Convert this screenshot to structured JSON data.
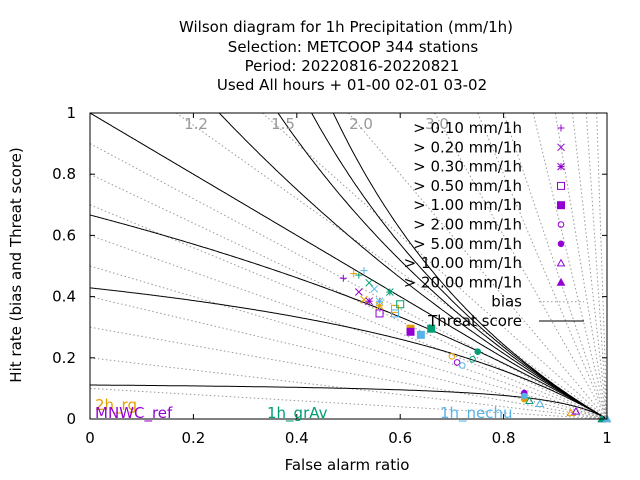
{
  "chart_data": {
    "type": "scatter",
    "title_lines": [
      "Wilson diagram  for 1h Precipitation (mm/1h)",
      "Selection: METCOOP    344 stations",
      "Period: 20220816-20220821",
      "Used  All hours + 01-00 02-01 03-02"
    ],
    "xlabel": "False alarm ratio",
    "ylabel": "Hit rate (bias and Threat score)",
    "xlim": [
      0,
      1
    ],
    "ylim": [
      0,
      1
    ],
    "xticks": [
      "0",
      "0.2",
      "0.4",
      "0.6",
      "0.8",
      "1"
    ],
    "yticks": [
      "0",
      "0.2",
      "0.4",
      "0.6",
      "0.8",
      "1"
    ],
    "bias_isolines": [
      {
        "label": "1.2",
        "value": 1.2
      },
      {
        "label": "1.5",
        "value": 1.5
      },
      {
        "label": "2.0",
        "value": 2.0
      },
      {
        "label": "3.0",
        "value": 3.0
      }
    ],
    "bias_values_unlabeled": [
      0.1,
      0.2,
      0.3,
      0.4,
      0.5,
      0.6,
      0.7,
      0.8,
      0.9,
      1.0,
      4.0,
      5.0,
      7.0,
      10.0,
      15.0,
      25.0,
      50.0
    ],
    "threat_score_isolines": [
      0.1,
      0.3,
      0.4,
      0.5,
      0.6,
      0.7,
      0.8,
      0.9
    ],
    "legend": {
      "placement": "top-right",
      "thresholds": [
        {
          "label": "> 0.10 mm/1h",
          "symbol": "plus"
        },
        {
          "label": "> 0.20 mm/1h",
          "symbol": "cross"
        },
        {
          "label": "> 0.30 mm/1h",
          "symbol": "star"
        },
        {
          "label": "> 0.50 mm/1h",
          "symbol": "square-open"
        },
        {
          "label": "> 1.00 mm/1h",
          "symbol": "square-filled"
        },
        {
          "label": "> 2.00 mm/1h",
          "symbol": "circle-open"
        },
        {
          "label": "> 5.00 mm/1h",
          "symbol": "circle-filled"
        },
        {
          "label": "> 10.00 mm/1h",
          "symbol": "triangle-open"
        },
        {
          "label": "> 20.00 mm/1h",
          "symbol": "triangle-filled"
        }
      ],
      "line_entries": [
        {
          "label": "bias",
          "style": "dotted"
        },
        {
          "label": "Threat score",
          "style": "solid"
        }
      ]
    },
    "series": [
      {
        "name": "2h_rg",
        "color": "#e69f00",
        "points": [
          [
            0.51,
            0.475
          ],
          [
            0.53,
            0.39
          ],
          [
            0.56,
            0.37
          ],
          [
            0.59,
            0.36
          ],
          [
            0.62,
            0.295
          ],
          [
            0.7,
            0.205
          ],
          [
            0.84,
            0.065
          ],
          [
            0.93,
            0.02
          ],
          [
            1.0,
            0.0
          ]
        ]
      },
      {
        "name": "MNWC_ref",
        "color": "#9400d3",
        "points": [
          [
            0.49,
            0.46
          ],
          [
            0.52,
            0.415
          ],
          [
            0.54,
            0.385
          ],
          [
            0.56,
            0.345
          ],
          [
            0.62,
            0.285
          ],
          [
            0.71,
            0.185
          ],
          [
            0.84,
            0.085
          ],
          [
            0.94,
            0.025
          ],
          [
            0.99,
            0.0
          ]
        ]
      },
      {
        "name": "1h_grAv",
        "color": "#009e73",
        "points": [
          [
            0.52,
            0.47
          ],
          [
            0.54,
            0.445
          ],
          [
            0.58,
            0.415
          ],
          [
            0.6,
            0.375
          ],
          [
            0.66,
            0.295
          ],
          [
            0.74,
            0.195
          ],
          [
            0.75,
            0.22
          ],
          [
            0.85,
            0.06
          ],
          [
            0.99,
            0.0
          ]
        ]
      },
      {
        "name": "1h_nechu",
        "color": "#56b4e9",
        "points": [
          [
            0.53,
            0.485
          ],
          [
            0.55,
            0.425
          ],
          [
            0.56,
            0.385
          ],
          [
            0.59,
            0.345
          ],
          [
            0.64,
            0.275
          ],
          [
            0.72,
            0.175
          ],
          [
            0.84,
            0.075
          ],
          [
            0.87,
            0.05
          ],
          [
            1.0,
            0.0
          ]
        ]
      }
    ]
  }
}
